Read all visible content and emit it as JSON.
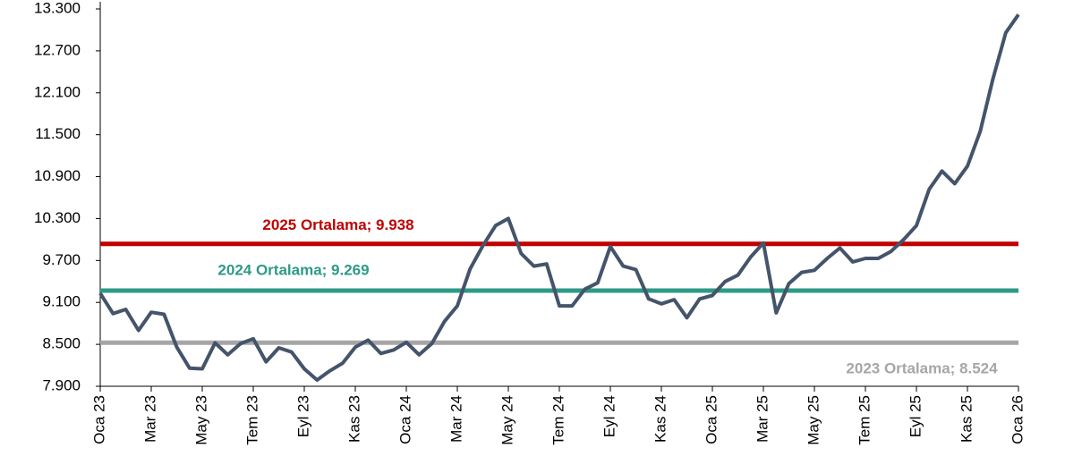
{
  "chart_data": {
    "type": "line",
    "categories": [
      "Oca 23",
      null,
      null,
      null,
      "Mar 23",
      null,
      null,
      null,
      "May 23",
      null,
      null,
      null,
      "Tem 23",
      null,
      null,
      null,
      "Eyl 23",
      null,
      null,
      null,
      "Kas 23",
      null,
      null,
      null,
      "Oca 24",
      null,
      null,
      null,
      "Mar 24",
      null,
      null,
      null,
      "May 24",
      null,
      null,
      null,
      "Tem 24",
      null,
      null,
      null,
      "Eyl 24",
      null,
      null,
      null,
      "Kas 24",
      null,
      null,
      null,
      "Oca 25",
      null,
      null,
      null,
      "Mar 25",
      null,
      null,
      null,
      "May 25",
      null,
      null,
      null,
      "Tem 25",
      null,
      null,
      null,
      "Eyl 25",
      null,
      null,
      null,
      "Kas 25",
      null,
      null,
      null,
      "Oca 26"
    ],
    "series": [
      {
        "color": "#44546a",
        "values": [
          9230,
          8940,
          9000,
          8700,
          8960,
          8930,
          8460,
          8160,
          8150,
          8520,
          8350,
          8510,
          8580,
          8250,
          8450,
          8390,
          8150,
          7990,
          8120,
          8230,
          8460,
          8560,
          8370,
          8420,
          8530,
          8350,
          8510,
          8830,
          9050,
          9580,
          9910,
          10200,
          10300,
          9800,
          9620,
          9650,
          9050,
          9050,
          9290,
          9380,
          9900,
          9620,
          9570,
          9150,
          9080,
          9140,
          8880,
          9150,
          9200,
          9400,
          9490,
          9750,
          9950,
          8950,
          9370,
          9530,
          9560,
          9730,
          9880,
          9680,
          9730,
          9730,
          9830,
          10000,
          10200,
          10720,
          10980,
          10800,
          11050,
          11550,
          12300,
          12960,
          13220
        ]
      }
    ],
    "averages": [
      {
        "label": "2025 Ortalama; 9.938",
        "value": 9938,
        "color": "#c00000"
      },
      {
        "label": "2024 Ortalama; 9.269",
        "value": 9269,
        "color": "#2e9a86"
      },
      {
        "label": "2023 Ortalama; 8.524",
        "value": 8524,
        "color": "#a6a6a6"
      }
    ],
    "ylim": [
      7900,
      13300
    ],
    "yticks": [
      {
        "value": 7900,
        "label": "7.900"
      },
      {
        "value": 8500,
        "label": "8.500"
      },
      {
        "value": 9100,
        "label": "9.100"
      },
      {
        "value": 9700,
        "label": "9.700"
      },
      {
        "value": 10300,
        "label": "10.300"
      },
      {
        "value": 10900,
        "label": "10.900"
      },
      {
        "value": 11500,
        "label": "11.500"
      },
      {
        "value": 12100,
        "label": "12.100"
      },
      {
        "value": 12700,
        "label": "12.700"
      },
      {
        "value": 13300,
        "label": "13.300"
      }
    ],
    "grid": false
  }
}
